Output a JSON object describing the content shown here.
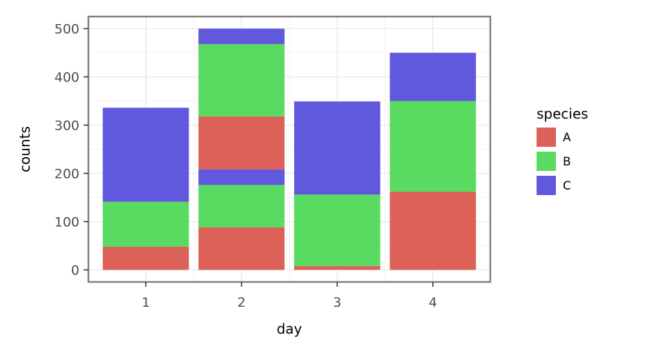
{
  "chart_data": {
    "type": "bar",
    "stacked": true,
    "x": [
      1,
      2,
      2,
      3,
      4
    ],
    "categories": [
      "1",
      "2",
      "3",
      "4"
    ],
    "series": [
      {
        "name": "A",
        "color": "#dc6158",
        "values": [
          48,
          88,
          110,
          8,
          162
        ]
      },
      {
        "name": "B",
        "color": "#58db60",
        "values": [
          93,
          88,
          150,
          148,
          188
        ]
      },
      {
        "name": "C",
        "color": "#6059dd",
        "values": [
          195,
          32,
          32,
          193,
          100
        ]
      }
    ],
    "xlabel": "day",
    "ylabel": "counts",
    "yticks": [
      0,
      100,
      200,
      300,
      400,
      500
    ],
    "ylim": [
      -25,
      525
    ],
    "legend": {
      "title": "species",
      "position": "right"
    },
    "grid": true
  }
}
